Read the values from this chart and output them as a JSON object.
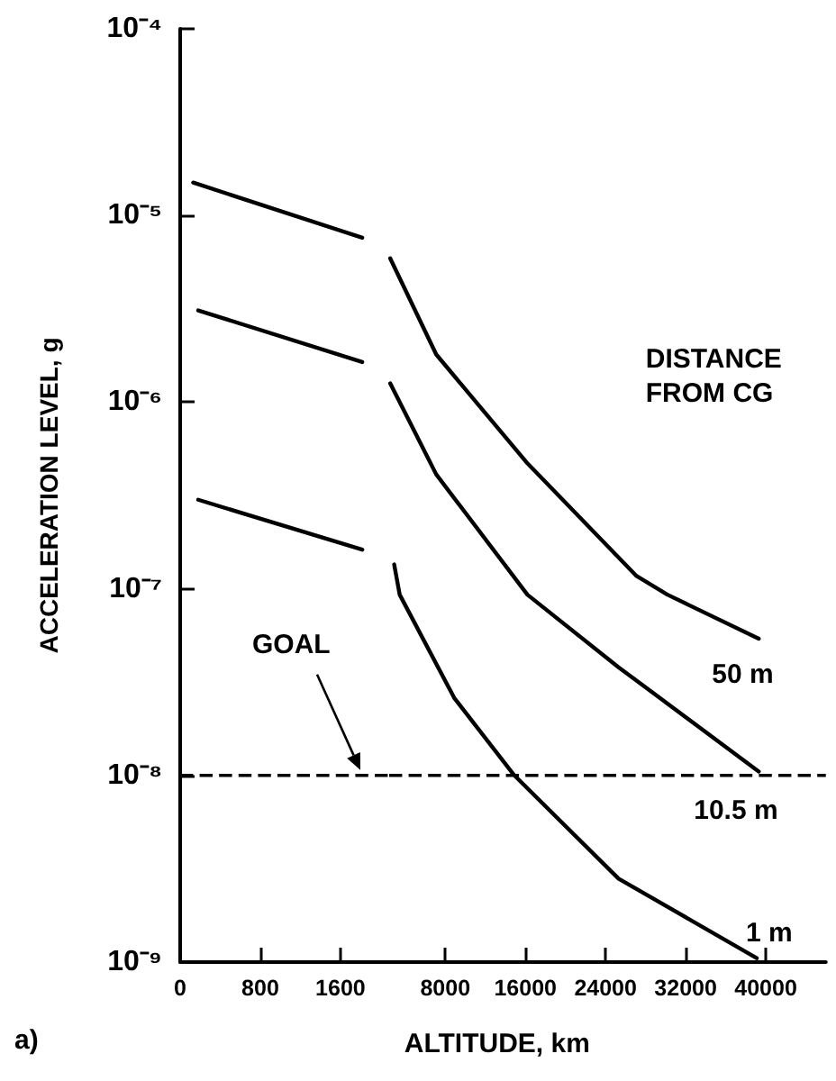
{
  "chart_data": [
    {
      "type": "line",
      "ylabel": "ACCELERATION LEVEL, g",
      "xlim": [
        0,
        2080
      ],
      "xticks": [
        0,
        800,
        1600
      ],
      "ylim": [
        1e-09,
        0.0001
      ],
      "log": "y",
      "yticks": [
        {
          "value": 1e-09,
          "label": "10⁻⁹"
        },
        {
          "value": 1e-08,
          "label": "10⁻⁸"
        },
        {
          "value": 1e-07,
          "label": "10⁻⁷"
        },
        {
          "value": 1e-06,
          "label": "10⁻⁶"
        },
        {
          "value": 1e-05,
          "label": "10⁻⁵"
        },
        {
          "value": 0.0001,
          "label": "10⁻⁴"
        }
      ],
      "grid": false,
      "legend": false,
      "marker": "none",
      "line_style": "solid",
      "series": [
        {
          "color": "#000000",
          "x": [
            130,
            1818
          ],
          "values": [
            1.5e-05,
            7.6e-06
          ]
        },
        {
          "color": "#000000",
          "x": [
            180,
            1818
          ],
          "values": [
            3.1e-06,
            1.64e-06
          ]
        },
        {
          "color": "#000000",
          "x": [
            180,
            1818
          ],
          "values": [
            3e-07,
            1.62e-07
          ]
        }
      ],
      "ref_lines": [
        {
          "axis": "y",
          "value": 1e-08,
          "label": "GOAL",
          "line_style": "dashed",
          "color": "#000000"
        }
      ],
      "annotations": [
        "a)"
      ]
    },
    {
      "type": "line",
      "xlabel": "ALTITUDE, km",
      "xlim": [
        2400,
        46000
      ],
      "xticks": [
        8000,
        16000,
        24000,
        32000,
        40000
      ],
      "ylim": [
        1e-09,
        0.0001
      ],
      "log": "y",
      "tick_labels": "x",
      "grid": false,
      "legend": false,
      "marker": "none",
      "line_style": "solid",
      "series": [
        {
          "name": "50 m",
          "color": "#000000",
          "x": [
            2500,
            7100,
            16200,
            27100,
            30180,
            39300
          ],
          "values": [
            5.9e-06,
            1.8e-06,
            4.7e-07,
            1.17e-07,
            9.3e-08,
            5.4e-08
          ]
        },
        {
          "name": "10.5 m",
          "color": "#000000",
          "x": [
            2500,
            7100,
            16200,
            25300,
            39300
          ],
          "values": [
            1.26e-06,
            4.1e-07,
            9.3e-08,
            3.8e-08,
            1.05e-08
          ]
        },
        {
          "name": "1 m",
          "color": "#000000",
          "x": [
            2900,
            3450,
            8900,
            14900,
            25300,
            39100
          ],
          "values": [
            1.35e-07,
            9.3e-08,
            2.6e-08,
            1e-08,
            2.8e-09,
            1.05e-09
          ]
        }
      ],
      "ref_lines": [
        {
          "axis": "y",
          "value": 1e-08,
          "line_style": "dashed",
          "color": "#000000"
        }
      ],
      "annotations": [
        "DISTANCE\nFROM CG"
      ]
    }
  ]
}
